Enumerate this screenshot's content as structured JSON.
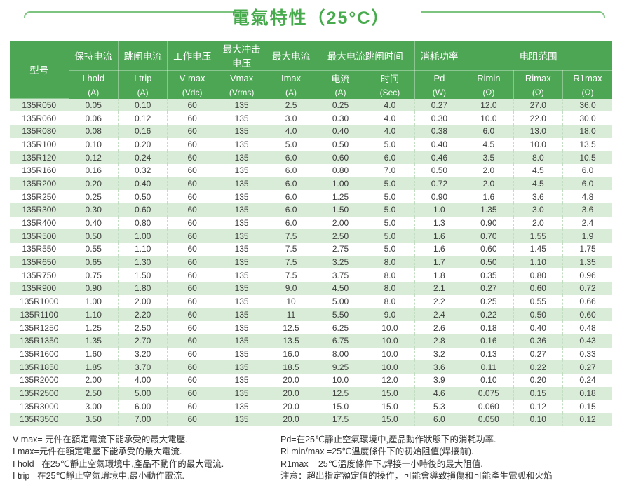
{
  "page": {
    "title": "電氣特性（25°C）"
  },
  "colors": {
    "header_green": "#4da654",
    "stripe_green": "#d9ecd7",
    "title_green": "#47ab4d",
    "deco_green": "#7cc47f"
  },
  "table": {
    "header": {
      "model": "型号",
      "row1": [
        "保持电流",
        "跳闸电流",
        "工作电压",
        "最大冲击电压",
        "最大电流",
        "最大电流跳闸时间",
        "消耗功率",
        "电阻范围"
      ],
      "row2": [
        "I hold",
        "I trip",
        "V max",
        "Vmax",
        "Imax",
        "电流",
        "时间",
        "Pd",
        "Rimin",
        "Rimax",
        "R1max"
      ],
      "row3": [
        "(A)",
        "(A)",
        "(Vdc)",
        "(Vrms)",
        "(A)",
        "(A)",
        "(Sec)",
        "(W)",
        "(Ω)",
        "(Ω)",
        "(Ω)"
      ]
    },
    "rows": [
      [
        "135R050",
        "0.05",
        "0.10",
        "60",
        "135",
        "2.5",
        "0.25",
        "4.0",
        "0.27",
        "12.0",
        "27.0",
        "36.0"
      ],
      [
        "135R060",
        "0.06",
        "0.12",
        "60",
        "135",
        "3.0",
        "0.30",
        "4.0",
        "0.30",
        "10.0",
        "22.0",
        "30.0"
      ],
      [
        "135R080",
        "0.08",
        "0.16",
        "60",
        "135",
        "4.0",
        "0.40",
        "4.0",
        "0.38",
        "6.0",
        "13.0",
        "18.0"
      ],
      [
        "135R100",
        "0.10",
        "0.20",
        "60",
        "135",
        "5.0",
        "0.50",
        "5.0",
        "0.40",
        "4.5",
        "10.0",
        "13.5"
      ],
      [
        "135R120",
        "0.12",
        "0.24",
        "60",
        "135",
        "6.0",
        "0.60",
        "6.0",
        "0.46",
        "3.5",
        "8.0",
        "10.5"
      ],
      [
        "135R160",
        "0.16",
        "0.32",
        "60",
        "135",
        "6.0",
        "0.80",
        "7.0",
        "0.50",
        "2.0",
        "4.5",
        "6.0"
      ],
      [
        "135R200",
        "0.20",
        "0.40",
        "60",
        "135",
        "6.0",
        "1.00",
        "5.0",
        "0.72",
        "2.0",
        "4.5",
        "6.0"
      ],
      [
        "135R250",
        "0.25",
        "0.50",
        "60",
        "135",
        "6.0",
        "1.25",
        "5.0",
        "0.90",
        "1.6",
        "3.6",
        "4.8"
      ],
      [
        "135R300",
        "0.30",
        "0.60",
        "60",
        "135",
        "6.0",
        "1.50",
        "5.0",
        "1.0",
        "1.35",
        "3.0",
        "3.6"
      ],
      [
        "135R400",
        "0.40",
        "0.80",
        "60",
        "135",
        "6.0",
        "2.00",
        "5.0",
        "1.3",
        "0.90",
        "2.0",
        "2.4"
      ],
      [
        "135R500",
        "0.50",
        "1.00",
        "60",
        "135",
        "7.5",
        "2.50",
        "5.0",
        "1.6",
        "0.70",
        "1.55",
        "1.9"
      ],
      [
        "135R550",
        "0.55",
        "1.10",
        "60",
        "135",
        "7.5",
        "2.75",
        "5.0",
        "1.6",
        "0.60",
        "1.45",
        "1.75"
      ],
      [
        "135R650",
        "0.65",
        "1.30",
        "60",
        "135",
        "7.5",
        "3.25",
        "8.0",
        "1.7",
        "0.50",
        "1.10",
        "1.35"
      ],
      [
        "135R750",
        "0.75",
        "1.50",
        "60",
        "135",
        "7.5",
        "3.75",
        "8.0",
        "1.8",
        "0.35",
        "0.80",
        "0.96"
      ],
      [
        "135R900",
        "0.90",
        "1.80",
        "60",
        "135",
        "9.0",
        "4.50",
        "8.0",
        "2.1",
        "0.27",
        "0.60",
        "0.72"
      ],
      [
        "135R1000",
        "1.00",
        "2.00",
        "60",
        "135",
        "10",
        "5.00",
        "8.0",
        "2.2",
        "0.25",
        "0.55",
        "0.66"
      ],
      [
        "135R1100",
        "1.10",
        "2.20",
        "60",
        "135",
        "11",
        "5.50",
        "9.0",
        "2.4",
        "0.22",
        "0.50",
        "0.60"
      ],
      [
        "135R1250",
        "1.25",
        "2.50",
        "60",
        "135",
        "12.5",
        "6.25",
        "10.0",
        "2.6",
        "0.18",
        "0.40",
        "0.48"
      ],
      [
        "135R1350",
        "1.35",
        "2.70",
        "60",
        "135",
        "13.5",
        "6.75",
        "10.0",
        "2.8",
        "0.16",
        "0.36",
        "0.43"
      ],
      [
        "135R1600",
        "1.60",
        "3.20",
        "60",
        "135",
        "16.0",
        "8.00",
        "10.0",
        "3.2",
        "0.13",
        "0.27",
        "0.33"
      ],
      [
        "135R1850",
        "1.85",
        "3.70",
        "60",
        "135",
        "18.5",
        "9.25",
        "10.0",
        "3.6",
        "0.11",
        "0.22",
        "0.27"
      ],
      [
        "135R2000",
        "2.00",
        "4.00",
        "60",
        "135",
        "20.0",
        "10.0",
        "12.0",
        "3.9",
        "0.10",
        "0.20",
        "0.24"
      ],
      [
        "135R2500",
        "2.50",
        "5.00",
        "60",
        "135",
        "20.0",
        "12.5",
        "15.0",
        "4.6",
        "0.075",
        "0.15",
        "0.18"
      ],
      [
        "135R3000",
        "3.00",
        "6.00",
        "60",
        "135",
        "20.0",
        "15.0",
        "15.0",
        "5.3",
        "0.060",
        "0.12",
        "0.15"
      ],
      [
        "135R3500",
        "3.50",
        "7.00",
        "60",
        "135",
        "20.0",
        "17.5",
        "15.0",
        "6.0",
        "0.050",
        "0.10",
        "0.12"
      ]
    ]
  },
  "notes": {
    "left": [
      "V max= 元件在額定電流下能承受的最大電壓.",
      "I max=元件在額定電壓下能承受的最大電流.",
      "I hold= 在25℃靜止空氣環境中,產品不動作的最大電流.",
      "I trip= 在25℃靜止空氣環境中,最小動作電流."
    ],
    "right": [
      "Pd=在25℃靜止空氣環境中,產品動作狀態下的消耗功率.",
      "Ri min/max  =25℃溫度條件下的初始阻值(焊接前).",
      "R1max  = 25℃溫度條件下,焊接一小時後的最大阻值.",
      "注意：超出指定額定值的操作，可能會導致損傷和可能產生電弧和火焰"
    ]
  }
}
